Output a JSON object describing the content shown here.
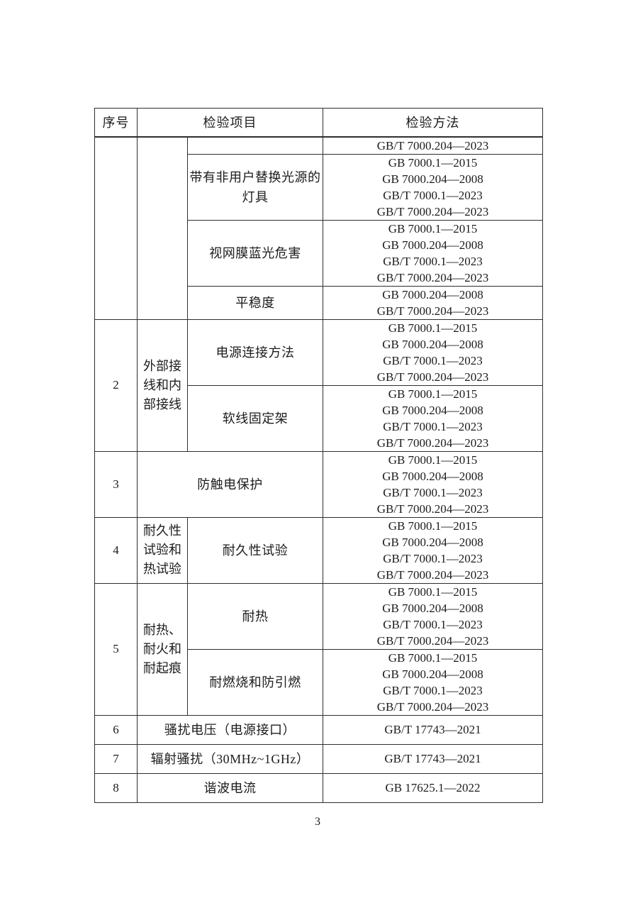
{
  "document": {
    "page_number": "3"
  },
  "table": {
    "columns": [
      "序号",
      "检验项目",
      "检验方法"
    ],
    "sections": [
      {
        "no": "",
        "category": "",
        "rows": [
          {
            "item": "",
            "methods": [
              "GB/T 7000.204—2023"
            ]
          },
          {
            "item": "带有非用户替换光源的灯具",
            "methods": [
              "GB 7000.1—2015",
              "GB 7000.204—2008",
              "GB/T 7000.1—2023",
              "GB/T 7000.204—2023"
            ]
          },
          {
            "item": "视网膜蓝光危害",
            "methods": [
              "GB 7000.1—2015",
              "GB 7000.204—2008",
              "GB/T 7000.1—2023",
              "GB/T 7000.204—2023"
            ]
          },
          {
            "item": "平稳度",
            "methods": [
              "GB 7000.204—2008",
              "GB/T 7000.204—2023"
            ]
          }
        ]
      },
      {
        "no": "2",
        "category": "外部接线和内部接线",
        "rows": [
          {
            "item": "电源连接方法",
            "methods": [
              "GB 7000.1—2015",
              "GB 7000.204—2008",
              "GB/T 7000.1—2023",
              "GB/T 7000.204—2023"
            ]
          },
          {
            "item": "软线固定架",
            "methods": [
              "GB 7000.1—2015",
              "GB 7000.204—2008",
              "GB/T 7000.1—2023",
              "GB/T 7000.204—2023"
            ]
          }
        ]
      },
      {
        "no": "3",
        "rows": [
          {
            "item": "防触电保护",
            "methods": [
              "GB 7000.1—2015",
              "GB 7000.204—2008",
              "GB/T 7000.1—2023",
              "GB/T 7000.204—2023"
            ]
          }
        ]
      },
      {
        "no": "4",
        "category": "耐久性试验和热试验",
        "rows": [
          {
            "item": "耐久性试验",
            "methods": [
              "GB 7000.1—2015",
              "GB 7000.204—2008",
              "GB/T 7000.1—2023",
              "GB/T 7000.204—2023"
            ]
          }
        ]
      },
      {
        "no": "5",
        "category": "耐热、耐火和耐起痕",
        "rows": [
          {
            "item": "耐热",
            "methods": [
              "GB 7000.1—2015",
              "GB 7000.204—2008",
              "GB/T 7000.1—2023",
              "GB/T 7000.204—2023"
            ]
          },
          {
            "item": "耐燃烧和防引燃",
            "methods": [
              "GB 7000.1—2015",
              "GB 7000.204—2008",
              "GB/T 7000.1—2023",
              "GB/T 7000.204—2023"
            ]
          }
        ]
      },
      {
        "no": "6",
        "rows": [
          {
            "item": "骚扰电压（电源接口）",
            "methods": [
              "GB/T 17743—2021"
            ]
          }
        ]
      },
      {
        "no": "7",
        "rows": [
          {
            "item": "辐射骚扰（30MHz~1GHz）",
            "methods": [
              "GB/T 17743—2021"
            ]
          }
        ]
      },
      {
        "no": "8",
        "rows": [
          {
            "item": "谐波电流",
            "methods": [
              "GB 17625.1—2022"
            ]
          }
        ]
      }
    ]
  }
}
